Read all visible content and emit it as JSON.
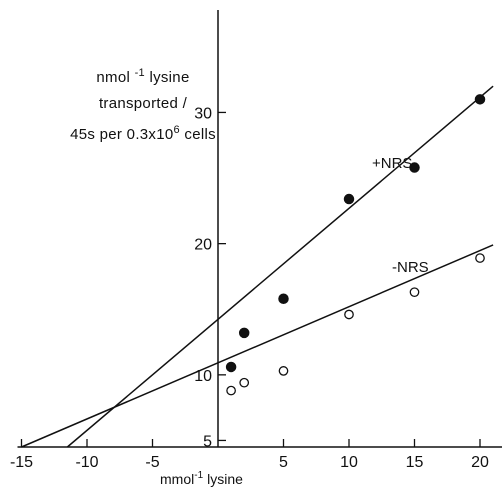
{
  "chart_data": {
    "type": "scatter",
    "title": "",
    "ylabel_lines": [
      "nmol",
      "-1",
      "lysine",
      "transported /",
      "45s per 0.3x10",
      "6",
      "cells"
    ],
    "xlabel": "mmol-1 lysine",
    "xlabel_parts": [
      "mmol",
      "-1",
      "lysine"
    ],
    "xlim": [
      -15,
      21
    ],
    "ylim": [
      4.5,
      32
    ],
    "x_ticks": [
      -15,
      -10,
      -5,
      5,
      10,
      15,
      20
    ],
    "x_tick_labels": [
      "-15",
      "-10",
      "-5",
      "5",
      "10",
      "15",
      "20"
    ],
    "y_ticks": [
      5,
      10,
      20,
      30
    ],
    "y_tick_labels": [
      "5",
      "10",
      "20",
      "30"
    ],
    "series": [
      {
        "name": "+NRS",
        "marker": "filled",
        "points": [
          [
            1,
            10.6
          ],
          [
            2,
            13.2
          ],
          [
            5,
            15.8
          ],
          [
            10,
            23.4
          ],
          [
            15,
            25.8
          ],
          [
            20,
            31.0
          ]
        ],
        "fit_line": [
          [
            -11.5,
            4.5
          ],
          [
            21,
            32
          ]
        ]
      },
      {
        "name": "-NRS",
        "marker": "open",
        "points": [
          [
            1,
            8.8
          ],
          [
            2,
            9.4
          ],
          [
            5,
            10.3
          ],
          [
            10,
            14.6
          ],
          [
            15,
            16.3
          ],
          [
            20,
            18.9
          ]
        ],
        "fit_line": [
          [
            -15,
            4.5
          ],
          [
            21,
            19.9
          ]
        ]
      }
    ],
    "grid": false,
    "legend": "none"
  }
}
